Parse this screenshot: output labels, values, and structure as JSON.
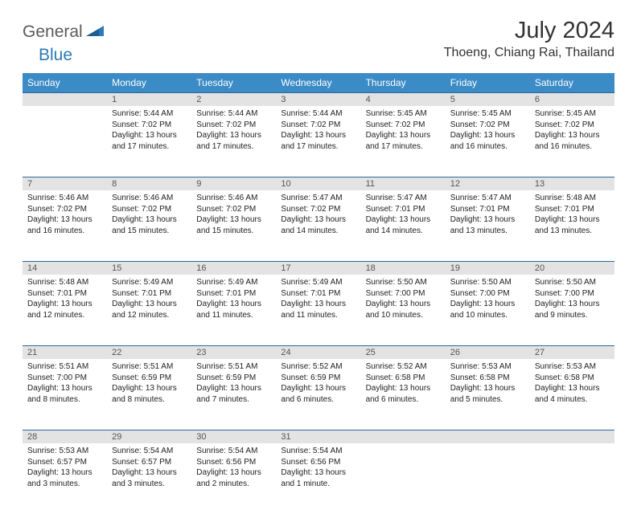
{
  "brand": {
    "part1": "General",
    "part2": "Blue"
  },
  "title": "July 2024",
  "location": "Thoeng, Chiang Rai, Thailand",
  "colors": {
    "header_bg": "#3b8bc6",
    "header_text": "#ffffff",
    "daynum_bg": "#e3e3e3",
    "rule": "#2a6a9a",
    "brand_blue": "#2a7ab8",
    "text": "#222222"
  },
  "day_names": [
    "Sunday",
    "Monday",
    "Tuesday",
    "Wednesday",
    "Thursday",
    "Friday",
    "Saturday"
  ],
  "weeks": [
    {
      "nums": [
        "",
        "1",
        "2",
        "3",
        "4",
        "5",
        "6"
      ],
      "cells": [
        null,
        {
          "sunrise": "5:44 AM",
          "sunset": "7:02 PM",
          "daylight": "13 hours and 17 minutes."
        },
        {
          "sunrise": "5:44 AM",
          "sunset": "7:02 PM",
          "daylight": "13 hours and 17 minutes."
        },
        {
          "sunrise": "5:44 AM",
          "sunset": "7:02 PM",
          "daylight": "13 hours and 17 minutes."
        },
        {
          "sunrise": "5:45 AM",
          "sunset": "7:02 PM",
          "daylight": "13 hours and 17 minutes."
        },
        {
          "sunrise": "5:45 AM",
          "sunset": "7:02 PM",
          "daylight": "13 hours and 16 minutes."
        },
        {
          "sunrise": "5:45 AM",
          "sunset": "7:02 PM",
          "daylight": "13 hours and 16 minutes."
        }
      ]
    },
    {
      "nums": [
        "7",
        "8",
        "9",
        "10",
        "11",
        "12",
        "13"
      ],
      "cells": [
        {
          "sunrise": "5:46 AM",
          "sunset": "7:02 PM",
          "daylight": "13 hours and 16 minutes."
        },
        {
          "sunrise": "5:46 AM",
          "sunset": "7:02 PM",
          "daylight": "13 hours and 15 minutes."
        },
        {
          "sunrise": "5:46 AM",
          "sunset": "7:02 PM",
          "daylight": "13 hours and 15 minutes."
        },
        {
          "sunrise": "5:47 AM",
          "sunset": "7:02 PM",
          "daylight": "13 hours and 14 minutes."
        },
        {
          "sunrise": "5:47 AM",
          "sunset": "7:01 PM",
          "daylight": "13 hours and 14 minutes."
        },
        {
          "sunrise": "5:47 AM",
          "sunset": "7:01 PM",
          "daylight": "13 hours and 13 minutes."
        },
        {
          "sunrise": "5:48 AM",
          "sunset": "7:01 PM",
          "daylight": "13 hours and 13 minutes."
        }
      ]
    },
    {
      "nums": [
        "14",
        "15",
        "16",
        "17",
        "18",
        "19",
        "20"
      ],
      "cells": [
        {
          "sunrise": "5:48 AM",
          "sunset": "7:01 PM",
          "daylight": "13 hours and 12 minutes."
        },
        {
          "sunrise": "5:49 AM",
          "sunset": "7:01 PM",
          "daylight": "13 hours and 12 minutes."
        },
        {
          "sunrise": "5:49 AM",
          "sunset": "7:01 PM",
          "daylight": "13 hours and 11 minutes."
        },
        {
          "sunrise": "5:49 AM",
          "sunset": "7:01 PM",
          "daylight": "13 hours and 11 minutes."
        },
        {
          "sunrise": "5:50 AM",
          "sunset": "7:00 PM",
          "daylight": "13 hours and 10 minutes."
        },
        {
          "sunrise": "5:50 AM",
          "sunset": "7:00 PM",
          "daylight": "13 hours and 10 minutes."
        },
        {
          "sunrise": "5:50 AM",
          "sunset": "7:00 PM",
          "daylight": "13 hours and 9 minutes."
        }
      ]
    },
    {
      "nums": [
        "21",
        "22",
        "23",
        "24",
        "25",
        "26",
        "27"
      ],
      "cells": [
        {
          "sunrise": "5:51 AM",
          "sunset": "7:00 PM",
          "daylight": "13 hours and 8 minutes."
        },
        {
          "sunrise": "5:51 AM",
          "sunset": "6:59 PM",
          "daylight": "13 hours and 8 minutes."
        },
        {
          "sunrise": "5:51 AM",
          "sunset": "6:59 PM",
          "daylight": "13 hours and 7 minutes."
        },
        {
          "sunrise": "5:52 AM",
          "sunset": "6:59 PM",
          "daylight": "13 hours and 6 minutes."
        },
        {
          "sunrise": "5:52 AM",
          "sunset": "6:58 PM",
          "daylight": "13 hours and 6 minutes."
        },
        {
          "sunrise": "5:53 AM",
          "sunset": "6:58 PM",
          "daylight": "13 hours and 5 minutes."
        },
        {
          "sunrise": "5:53 AM",
          "sunset": "6:58 PM",
          "daylight": "13 hours and 4 minutes."
        }
      ]
    },
    {
      "nums": [
        "28",
        "29",
        "30",
        "31",
        "",
        "",
        ""
      ],
      "cells": [
        {
          "sunrise": "5:53 AM",
          "sunset": "6:57 PM",
          "daylight": "13 hours and 3 minutes."
        },
        {
          "sunrise": "5:54 AM",
          "sunset": "6:57 PM",
          "daylight": "13 hours and 3 minutes."
        },
        {
          "sunrise": "5:54 AM",
          "sunset": "6:56 PM",
          "daylight": "13 hours and 2 minutes."
        },
        {
          "sunrise": "5:54 AM",
          "sunset": "6:56 PM",
          "daylight": "13 hours and 1 minute."
        },
        null,
        null,
        null
      ]
    }
  ],
  "labels": {
    "sunrise": "Sunrise:",
    "sunset": "Sunset:",
    "daylight": "Daylight:"
  }
}
